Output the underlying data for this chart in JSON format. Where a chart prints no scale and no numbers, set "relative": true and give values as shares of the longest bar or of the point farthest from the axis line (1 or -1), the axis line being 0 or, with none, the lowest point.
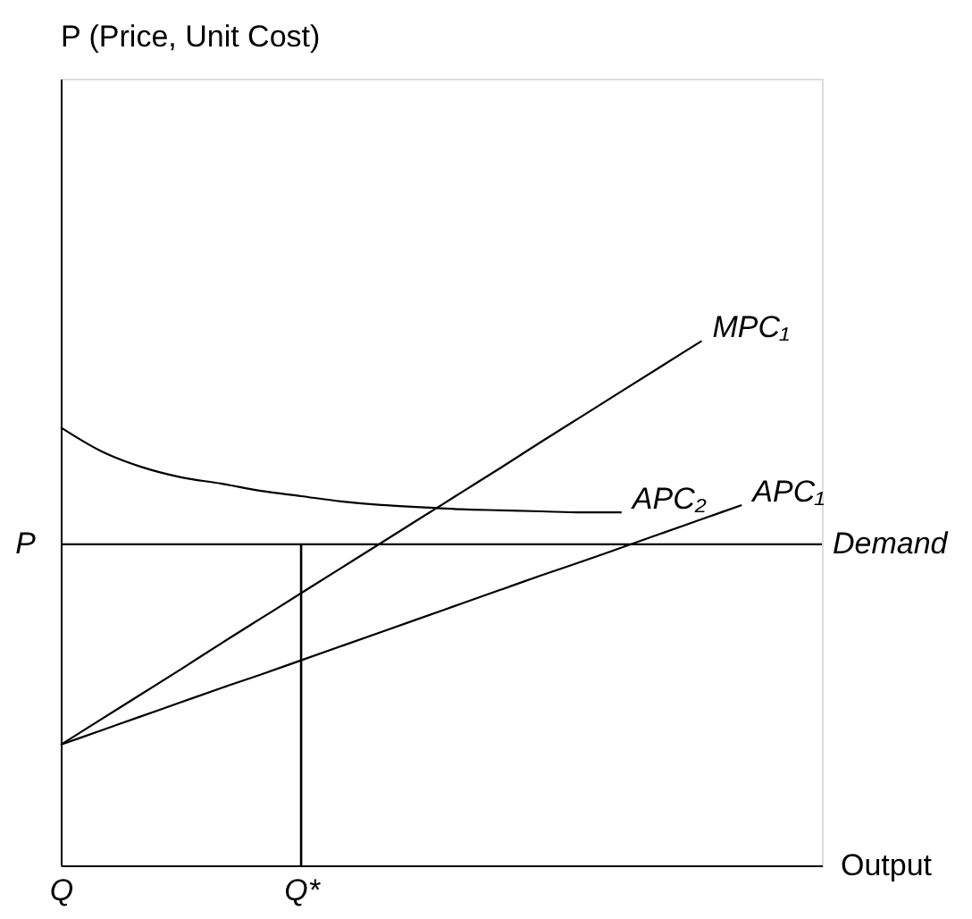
{
  "chart_data": {
    "type": "line",
    "relative": true,
    "xlabel": "Output",
    "categories": [
      "Q",
      null,
      null,
      null,
      null,
      null,
      "Q*",
      null,
      null,
      null,
      null,
      null,
      null,
      null,
      null,
      null,
      null,
      null,
      null,
      null
    ],
    "series": [
      {
        "name": "MPC₁",
        "color": "#000000",
        "values": [
          0.23,
          0.278,
          0.326,
          0.374,
          0.423,
          0.471,
          0.519,
          0.567,
          0.615,
          0.663,
          0.711,
          0.759,
          0.808,
          0.856,
          0.904,
          0.952,
          1.0,
          null,
          null,
          null
        ]
      },
      {
        "name": "APC₁",
        "color": "#000000",
        "values": [
          0.23,
          0.257,
          0.284,
          0.311,
          0.338,
          0.364,
          0.391,
          0.418,
          0.445,
          0.472,
          0.499,
          0.526,
          0.553,
          0.579,
          0.606,
          0.633,
          0.66,
          0.687,
          null,
          null
        ]
      },
      {
        "name": "APC₂",
        "color": "#000000",
        "values": [
          0.835,
          0.79,
          0.76,
          0.74,
          0.728,
          0.714,
          0.704,
          0.694,
          0.687,
          0.683,
          0.679,
          0.677,
          0.675,
          0.673,
          0.673,
          null,
          null,
          null,
          null,
          null
        ]
      },
      {
        "type": "bar",
        "color": "#000000",
        "values": [
          null,
          null,
          null,
          null,
          null,
          null,
          0.612,
          null,
          null,
          null,
          null,
          null,
          null,
          null,
          null,
          null,
          null,
          null,
          null,
          null
        ]
      }
    ],
    "ref_lines": [
      {
        "axis": "y",
        "value": 0.612,
        "label": "Demand",
        "color": "#000000"
      }
    ],
    "annotations": [
      "P (Price, Unit Cost)",
      "P"
    ],
    "grid": false,
    "marker": "none",
    "line_style": "solid"
  }
}
